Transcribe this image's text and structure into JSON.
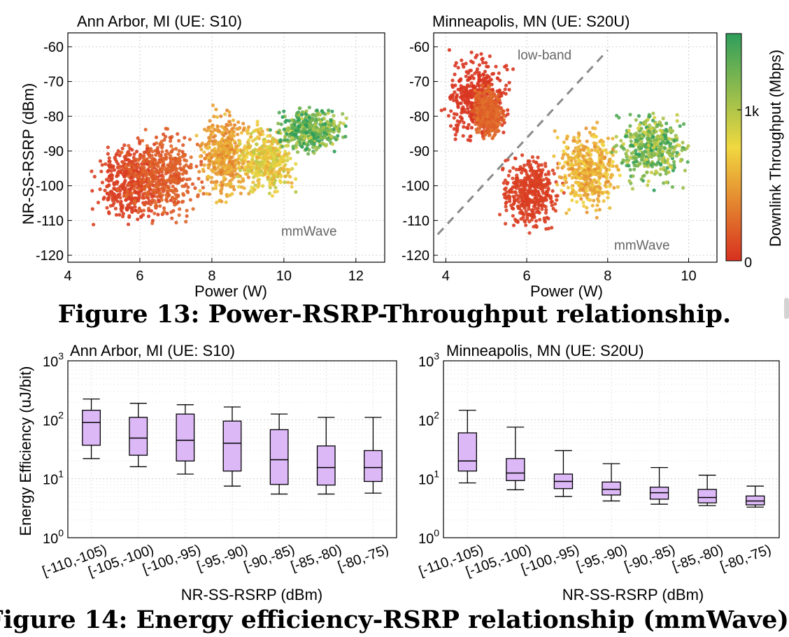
{
  "figure13": {
    "caption": "Figure 13: Power-RSRP-Throughput relationship.",
    "colorbar": {
      "label": "Downlink Throughput (Mbps)",
      "ticks": [
        "0",
        "1k"
      ],
      "colors": [
        "#d7301f",
        "#f0d840",
        "#2e9e5b"
      ]
    },
    "panels": [
      {
        "title": "Ann Arbor, MI (UE: S10)",
        "xlabel": "Power (W)",
        "ylabel": "NR-SS-RSRP (dBm)",
        "xticks": [
          "4",
          "6",
          "8",
          "10",
          "12"
        ],
        "yticks": [
          "-60",
          "-70",
          "-80",
          "-90",
          "-100",
          "-110",
          "-120"
        ],
        "annotations": [
          "mmWave"
        ]
      },
      {
        "title": "Minneapolis, MN (UE: S20U)",
        "xlabel": "Power (W)",
        "yticks": [
          "-60",
          "-70",
          "-80",
          "-90",
          "-100",
          "-110",
          "-120"
        ],
        "xticks": [
          "4",
          "6",
          "8",
          "10"
        ],
        "annotations": [
          "low-band",
          "mmWave"
        ]
      }
    ]
  },
  "figure14": {
    "caption": "Figure 14: Energy efficiency-RSRP relationship (mmWave).",
    "box_color": "#dcb8f7",
    "panels": [
      {
        "title": "Ann Arbor, MI (UE: S10)",
        "xlabel": "NR-SS-RSRP (dBm)",
        "ylabel": "Energy Efficiency (uJ/bit)",
        "categories": [
          "[-110,-105)",
          "[-105,-100)",
          "[-100,-95)",
          "[-95,-90)",
          "[-90,-85)",
          "[-85,-80)",
          "[-80,-75)"
        ]
      },
      {
        "title": "Minneapolis, MN (UE: S20U)",
        "xlabel": "NR-SS-RSRP (dBm)",
        "categories": [
          "[-110,-105)",
          "[-105,-100)",
          "[-100,-95)",
          "[-95,-90)",
          "[-90,-85)",
          "[-85,-80)",
          "[-80,-75)"
        ]
      }
    ]
  },
  "chart_data": [
    {
      "type": "scatter",
      "title": "Ann Arbor, MI (UE: S10)",
      "xlabel": "Power (W)",
      "ylabel": "NR-SS-RSRP (dBm)",
      "xlim": [
        4,
        12.8
      ],
      "ylim": [
        -122,
        -56
      ],
      "color_scale": "Downlink Throughput (Mbps)",
      "clusters": [
        {
          "x": [
            4.5,
            7.0
          ],
          "y": [
            -113,
            -86
          ],
          "throughput": 80
        },
        {
          "x": [
            5.2,
            8.0
          ],
          "y": [
            -113,
            -80
          ],
          "throughput": 250
        },
        {
          "x": [
            7.5,
            9.2
          ],
          "y": [
            -108,
            -75
          ],
          "throughput": 600
        },
        {
          "x": [
            8.5,
            10.5
          ],
          "y": [
            -105,
            -80
          ],
          "throughput": 900
        },
        {
          "x": [
            9.5,
            12.0
          ],
          "y": [
            -92,
            -76
          ],
          "throughput": 1500
        }
      ],
      "annotations": [
        "mmWave"
      ]
    },
    {
      "type": "scatter",
      "title": "Minneapolis, MN (UE: S20U)",
      "xlabel": "Power (W)",
      "xlim": [
        3.7,
        10.7
      ],
      "ylim": [
        -122,
        -56
      ],
      "color_scale": "Downlink Throughput (Mbps)",
      "clusters": [
        {
          "x": [
            3.8,
            5.8
          ],
          "y": [
            -90,
            -60
          ],
          "throughput": 30
        },
        {
          "x": [
            4.6,
            5.5
          ],
          "y": [
            -88,
            -70
          ],
          "throughput": 300
        },
        {
          "x": [
            5.2,
            7.0
          ],
          "y": [
            -116,
            -88
          ],
          "throughput": 80
        },
        {
          "x": [
            6.5,
            8.5
          ],
          "y": [
            -110,
            -80
          ],
          "throughput": 700
        },
        {
          "x": [
            8.0,
            10.2
          ],
          "y": [
            -102,
            -76
          ],
          "throughput": 1400
        }
      ],
      "boundary": {
        "x": [
          3.8,
          8.0
        ],
        "y": [
          -114,
          -61
        ]
      },
      "annotations": [
        "low-band",
        "mmWave"
      ]
    },
    {
      "type": "box",
      "title": "Ann Arbor, MI (UE: S10)",
      "xlabel": "NR-SS-RSRP (dBm)",
      "ylabel": "Energy Efficiency (uJ/bit)",
      "yscale": "log",
      "ylim": [
        1,
        1000
      ],
      "categories": [
        "[-110,-105)",
        "[-105,-100)",
        "[-100,-95)",
        "[-95,-90)",
        "[-90,-85)",
        "[-85,-80)",
        "[-80,-75)"
      ],
      "boxes": [
        {
          "whislo": 22,
          "q1": 37,
          "med": 90,
          "q3": 145,
          "whishi": 225
        },
        {
          "whislo": 16,
          "q1": 25,
          "med": 49,
          "q3": 110,
          "whishi": 190
        },
        {
          "whislo": 12,
          "q1": 20,
          "med": 45,
          "q3": 125,
          "whishi": 180
        },
        {
          "whislo": 7.5,
          "q1": 13.5,
          "med": 40,
          "q3": 95,
          "whishi": 165
        },
        {
          "whislo": 5.5,
          "q1": 8,
          "med": 21,
          "q3": 68,
          "whishi": 125
        },
        {
          "whislo": 5.5,
          "q1": 7.8,
          "med": 15.5,
          "q3": 36,
          "whishi": 110
        },
        {
          "whislo": 5.7,
          "q1": 9,
          "med": 15.5,
          "q3": 30,
          "whishi": 110
        }
      ]
    },
    {
      "type": "box",
      "title": "Minneapolis, MN (UE: S20U)",
      "xlabel": "NR-SS-RSRP (dBm)",
      "yscale": "log",
      "ylim": [
        1,
        1000
      ],
      "categories": [
        "[-110,-105)",
        "[-105,-100)",
        "[-100,-95)",
        "[-95,-90)",
        "[-90,-85)",
        "[-85,-80)",
        "[-80,-75)"
      ],
      "boxes": [
        {
          "whislo": 8.5,
          "q1": 13.5,
          "med": 20,
          "q3": 60,
          "whishi": 145
        },
        {
          "whislo": 6.5,
          "q1": 9.3,
          "med": 12.5,
          "q3": 22,
          "whishi": 75
        },
        {
          "whislo": 5,
          "q1": 6.8,
          "med": 9,
          "q3": 12,
          "whishi": 30
        },
        {
          "whislo": 4.2,
          "q1": 5.3,
          "med": 6.6,
          "q3": 8.8,
          "whishi": 18
        },
        {
          "whislo": 3.7,
          "q1": 4.5,
          "med": 5.8,
          "q3": 7.2,
          "whishi": 15.5
        },
        {
          "whislo": 3.5,
          "q1": 3.9,
          "med": 4.8,
          "q3": 6.6,
          "whishi": 11.5
        },
        {
          "whislo": 3.3,
          "q1": 3.6,
          "med": 4.2,
          "q3": 5.1,
          "whishi": 7.5
        }
      ]
    }
  ]
}
